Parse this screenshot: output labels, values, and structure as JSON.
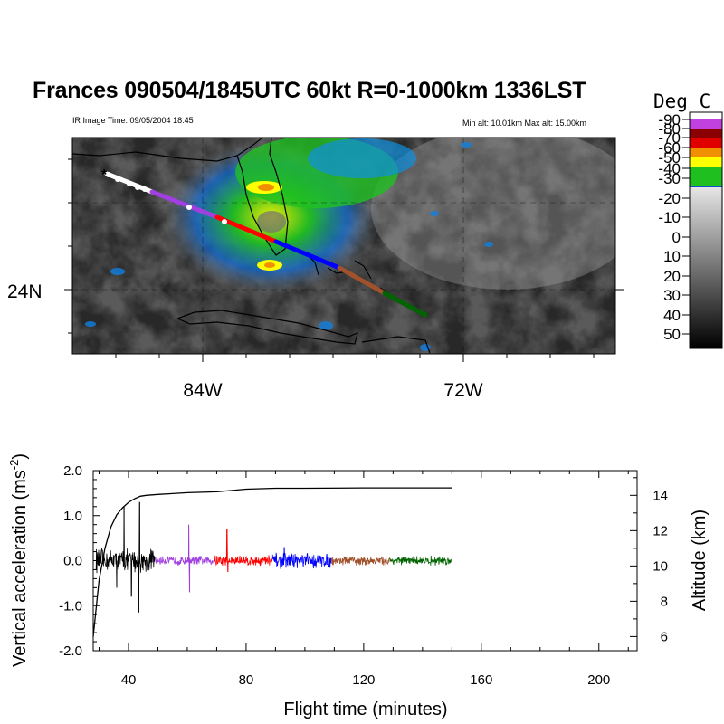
{
  "header": {
    "title": "Frances 090504/1845UTC 60kt  R=0-1000km 1336LST",
    "ir_time": "IR Image Time: 09/05/2004 18:45",
    "alt_range": "Min alt: 10.01km  Max alt: 15.00km"
  },
  "map": {
    "lat_label": "24N",
    "lon_labels": [
      "84W",
      "72W"
    ]
  },
  "colorbar": {
    "unit": "Deg C",
    "ticks": [
      "-90",
      "-80",
      "-70",
      "-60",
      "-50",
      "-40",
      "-30",
      "-20",
      "-10",
      "0",
      "10",
      "20",
      "30",
      "40",
      "50"
    ],
    "colors": [
      "#c040e0",
      "#8b0000",
      "#e00000",
      "#f09000",
      "#ffff00",
      "#1fbf1f",
      "#1050d0",
      "#20d0ff",
      "#c8c8c8",
      "#000000"
    ]
  },
  "chart_data": {
    "type": "line",
    "xlabel": "Flight time (minutes)",
    "ylabel": "Vertical acceleration (ms",
    "ylabel_sup": "-2",
    "ylabel_close": ")",
    "y2label": "Altitude (km)",
    "xlim": [
      28,
      213
    ],
    "ylim": [
      -2.0,
      2.0
    ],
    "y2lim": [
      5.2,
      15.4
    ],
    "xticks": [
      "40",
      "80",
      "120",
      "160",
      "200"
    ],
    "yticks": [
      "2.0",
      "1.0",
      "0.0",
      "-1.0",
      "-2.0"
    ],
    "y2ticks": [
      "6",
      "8",
      "10",
      "12",
      "14"
    ],
    "altitude_series": {
      "name": "Altitude",
      "x": [
        28,
        30,
        32,
        34,
        36,
        38,
        40,
        42,
        44,
        46,
        50,
        55,
        60,
        70,
        80,
        90,
        100,
        120,
        140,
        150
      ],
      "y": [
        6.0,
        9.2,
        11.0,
        12.2,
        12.9,
        13.3,
        13.6,
        13.8,
        13.95,
        14.0,
        14.05,
        14.1,
        14.15,
        14.2,
        14.35,
        14.4,
        14.4,
        14.42,
        14.42,
        14.42
      ]
    },
    "acceleration_segments": [
      {
        "color": "#000000",
        "x_range": [
          29,
          49
        ],
        "amplitude": 0.3,
        "spikes": [
          {
            "x": 38.5,
            "y": 1.2
          },
          {
            "x": 43.5,
            "y": -1.15
          },
          {
            "x": 43.8,
            "y": 1.3
          },
          {
            "x": 41,
            "y": -0.8
          },
          {
            "x": 36,
            "y": -0.6
          }
        ]
      },
      {
        "color": "#a040e0",
        "x_range": [
          49,
          69
        ],
        "amplitude": 0.12,
        "spikes": [
          {
            "x": 60.5,
            "y": 0.8
          },
          {
            "x": 60.8,
            "y": -0.7
          }
        ]
      },
      {
        "color": "#ff0000",
        "x_range": [
          69,
          89
        ],
        "amplitude": 0.15,
        "spikes": [
          {
            "x": 73.5,
            "y": 0.7
          },
          {
            "x": 73.8,
            "y": -0.25
          }
        ]
      },
      {
        "color": "#0000ff",
        "x_range": [
          89,
          109
        ],
        "amplitude": 0.2,
        "spikes": [
          {
            "x": 93,
            "y": 0.3
          }
        ]
      },
      {
        "color": "#a0522d",
        "x_range": [
          109,
          129
        ],
        "amplitude": 0.12,
        "spikes": []
      },
      {
        "color": "#006400",
        "x_range": [
          129,
          150
        ],
        "amplitude": 0.12,
        "spikes": []
      }
    ]
  }
}
